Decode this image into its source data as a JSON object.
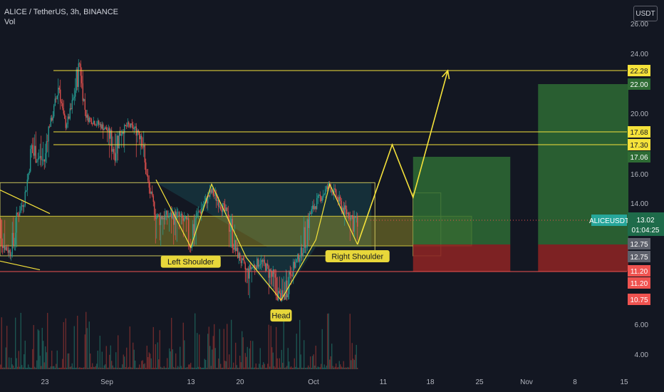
{
  "header": {
    "title": "ALICE / TetherUS, 3h, BINANCE",
    "volume_label": "Vol"
  },
  "currency_button": "USDT",
  "ticker_label": "ALICEUSDT",
  "last_price": "13.02",
  "countdown": "01:04:25",
  "colors": {
    "background": "#131722",
    "up": "#26a69a",
    "down": "#ef5350",
    "accent_yellow": "#f5e23a",
    "long_target": "#2e6b34",
    "long_stop": "#8a2424"
  },
  "annotations": [
    "Left Shoulder",
    "Head",
    "Right Shoulder"
  ],
  "chart_data": {
    "type": "candlestick",
    "title": "ALICE / TetherUS, 3h, BINANCE",
    "x_ticks": [
      "23",
      "Sep",
      "13",
      "20",
      "Oct",
      "11",
      "18",
      "25",
      "Nov",
      "8",
      "15"
    ],
    "y_ticks": [
      "26.00",
      "24.00",
      "20.00",
      "16.00",
      "14.00",
      "6.00",
      "4.00"
    ],
    "price_labels": [
      {
        "text": "22.28",
        "value": 22.28,
        "color": "#f5e23a"
      },
      {
        "text": "22.00",
        "value": 22.0,
        "color": "#2e6b34"
      },
      {
        "text": "17.68",
        "value": 17.68,
        "color": "#f5e23a"
      },
      {
        "text": "17.30",
        "value": 17.3,
        "color": "#f5e23a"
      },
      {
        "text": "17.06",
        "value": 17.06,
        "color": "#2e6b34"
      },
      {
        "text": "12.75",
        "value": 12.75,
        "color": "#5d606b"
      },
      {
        "text": "12.75",
        "value": 12.75,
        "color": "#5d606b"
      },
      {
        "text": "11.20",
        "value": 11.2,
        "color": "#ef5350"
      },
      {
        "text": "11.20",
        "value": 11.2,
        "color": "#ef5350"
      },
      {
        "text": "10.75",
        "value": 10.75,
        "color": "#ef5350"
      }
    ],
    "horizontal_lines": [
      22.28,
      17.68,
      17.3,
      11.2
    ],
    "price_path": [
      {
        "date": "2021-08-16",
        "close": 13.2
      },
      {
        "date": "2021-08-18",
        "close": 12.3
      },
      {
        "date": "2021-08-20",
        "close": 14.2
      },
      {
        "date": "2021-08-21",
        "close": 17.2
      },
      {
        "date": "2021-08-23",
        "close": 16.8
      },
      {
        "date": "2021-08-25",
        "close": 22.0
      },
      {
        "date": "2021-08-26",
        "close": 18.5
      },
      {
        "date": "2021-08-28",
        "close": 23.0
      },
      {
        "date": "2021-08-29",
        "close": 19.5
      },
      {
        "date": "2021-08-31",
        "close": 18.5
      },
      {
        "date": "2021-09-02",
        "close": 17.2
      },
      {
        "date": "2021-09-04",
        "close": 18.5
      },
      {
        "date": "2021-09-06",
        "close": 17.6
      },
      {
        "date": "2021-09-07",
        "close": 15.0
      },
      {
        "date": "2021-09-08",
        "close": 13.2
      },
      {
        "date": "2021-09-11",
        "close": 13.3
      },
      {
        "date": "2021-09-13",
        "close": 12.7
      },
      {
        "date": "2021-09-15",
        "close": 14.0
      },
      {
        "date": "2021-09-16",
        "close": 14.8
      },
      {
        "date": "2021-09-19",
        "close": 12.8
      },
      {
        "date": "2021-09-21",
        "close": 11.2
      },
      {
        "date": "2021-09-23",
        "close": 11.8
      },
      {
        "date": "2021-09-26",
        "close": 10.6
      },
      {
        "date": "2021-09-28",
        "close": 11.6
      },
      {
        "date": "2021-10-01",
        "close": 14.0
      },
      {
        "date": "2021-10-03",
        "close": 15.2
      },
      {
        "date": "2021-10-05",
        "close": 13.6
      },
      {
        "date": "2021-10-07",
        "close": 13.0
      }
    ],
    "forecast_path": [
      {
        "date": "2021-10-07",
        "value": 12.75
      },
      {
        "date": "2021-10-12",
        "value": 17.3
      },
      {
        "date": "2021-10-15",
        "value": 14.4
      },
      {
        "date": "2021-10-20",
        "value": 22.28
      }
    ],
    "long_positions": [
      {
        "start": "2021-10-15",
        "end": "2021-10-29",
        "entry": 12.75,
        "target": 17.06,
        "stop": 11.2
      },
      {
        "start": "2021-11-02",
        "end": "2021-11-15",
        "entry": 12.75,
        "target": 22.0,
        "stop": 11.2
      }
    ]
  }
}
